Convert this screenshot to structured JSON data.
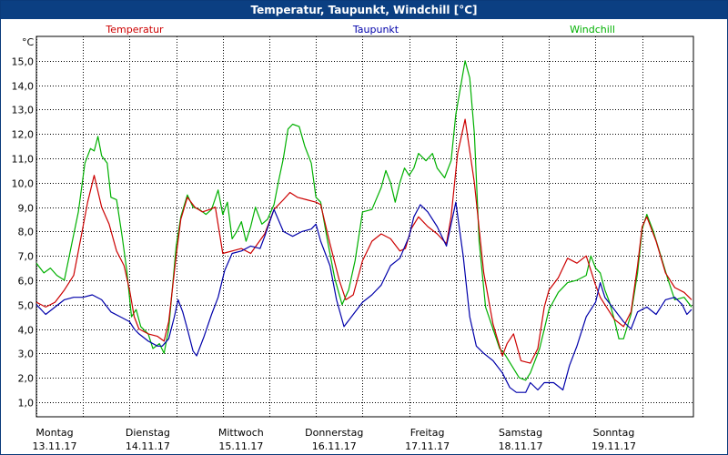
{
  "window": {
    "title": "Temperatur, Taupunkt, Windchill [°C]"
  },
  "chart_data": {
    "type": "line",
    "title": "Temperatur, Taupunkt, Windchill [°C]",
    "ylabel": "°C",
    "ylim": [
      0.4,
      16.0
    ],
    "yticks": [
      1.0,
      2.0,
      3.0,
      4.0,
      5.0,
      6.0,
      7.0,
      8.0,
      9.0,
      10.0,
      11.0,
      12.0,
      13.0,
      14.0,
      15.0
    ],
    "ytick_labels": [
      "1,0",
      "2,0",
      "3,0",
      "4,0",
      "5,0",
      "6,0",
      "7,0",
      "8,0",
      "9,0",
      "10,0",
      "11,0",
      "12,0",
      "13,0",
      "14,0",
      "15,0"
    ],
    "xlim": [
      0,
      7.05
    ],
    "x_unit": "days since 13.11.17 00:00",
    "xticks": [
      {
        "x": 0,
        "day": "Montag",
        "date": "13.11.17"
      },
      {
        "x": 1,
        "day": "Dienstag",
        "date": "14.11.17"
      },
      {
        "x": 2,
        "day": "Mittwoch",
        "date": "15.11.17"
      },
      {
        "x": 3,
        "day": "Donnerstag",
        "date": "16.11.17"
      },
      {
        "x": 4,
        "day": "Freitag",
        "date": "17.11.17"
      },
      {
        "x": 5,
        "day": "Samstag",
        "date": "18.11.17"
      },
      {
        "x": 6,
        "day": "Sonntag",
        "date": "19.11.17"
      }
    ],
    "grid": true,
    "legend": "top",
    "series": [
      {
        "name": "Temperatur",
        "color": "#cc0000",
        "points": [
          [
            0.0,
            5.1
          ],
          [
            0.1,
            4.9
          ],
          [
            0.2,
            5.1
          ],
          [
            0.3,
            5.6
          ],
          [
            0.4,
            6.2
          ],
          [
            0.48,
            7.8
          ],
          [
            0.55,
            9.2
          ],
          [
            0.62,
            10.3
          ],
          [
            0.7,
            9.0
          ],
          [
            0.78,
            8.3
          ],
          [
            0.86,
            7.2
          ],
          [
            0.94,
            6.6
          ],
          [
            1.0,
            5.6
          ],
          [
            1.05,
            4.5
          ],
          [
            1.1,
            4.0
          ],
          [
            1.2,
            3.8
          ],
          [
            1.3,
            3.7
          ],
          [
            1.37,
            3.5
          ],
          [
            1.42,
            4.3
          ],
          [
            1.5,
            7.0
          ],
          [
            1.55,
            8.5
          ],
          [
            1.62,
            9.4
          ],
          [
            1.7,
            9.0
          ],
          [
            1.78,
            8.8
          ],
          [
            1.86,
            8.9
          ],
          [
            1.92,
            9.0
          ],
          [
            2.0,
            7.1
          ],
          [
            2.1,
            7.2
          ],
          [
            2.2,
            7.3
          ],
          [
            2.3,
            7.1
          ],
          [
            2.45,
            7.9
          ],
          [
            2.55,
            8.9
          ],
          [
            2.65,
            9.3
          ],
          [
            2.72,
            9.6
          ],
          [
            2.8,
            9.4
          ],
          [
            2.9,
            9.3
          ],
          [
            3.0,
            9.2
          ],
          [
            3.05,
            9.1
          ],
          [
            3.15,
            7.5
          ],
          [
            3.25,
            6.0
          ],
          [
            3.32,
            5.2
          ],
          [
            3.4,
            5.4
          ],
          [
            3.5,
            6.8
          ],
          [
            3.6,
            7.6
          ],
          [
            3.7,
            7.9
          ],
          [
            3.8,
            7.7
          ],
          [
            3.9,
            7.2
          ],
          [
            3.96,
            7.3
          ],
          [
            4.02,
            8.1
          ],
          [
            4.1,
            8.6
          ],
          [
            4.2,
            8.2
          ],
          [
            4.3,
            7.9
          ],
          [
            4.4,
            7.5
          ],
          [
            4.45,
            8.6
          ],
          [
            4.52,
            11.2
          ],
          [
            4.6,
            12.6
          ],
          [
            4.7,
            10.0
          ],
          [
            4.8,
            6.3
          ],
          [
            4.9,
            4.2
          ],
          [
            5.0,
            2.9
          ],
          [
            5.05,
            3.4
          ],
          [
            5.12,
            3.8
          ],
          [
            5.2,
            2.7
          ],
          [
            5.3,
            2.6
          ],
          [
            5.38,
            3.2
          ],
          [
            5.45,
            4.9
          ],
          [
            5.5,
            5.6
          ],
          [
            5.6,
            6.1
          ],
          [
            5.7,
            6.9
          ],
          [
            5.8,
            6.7
          ],
          [
            5.9,
            7.0
          ],
          [
            6.0,
            5.8
          ],
          [
            6.05,
            5.3
          ],
          [
            6.1,
            5.0
          ],
          [
            6.2,
            4.4
          ],
          [
            6.3,
            4.1
          ],
          [
            6.38,
            4.7
          ],
          [
            6.45,
            6.6
          ],
          [
            6.5,
            8.2
          ],
          [
            6.55,
            8.6
          ],
          [
            6.65,
            7.6
          ],
          [
            6.75,
            6.3
          ],
          [
            6.85,
            5.7
          ],
          [
            6.95,
            5.5
          ],
          [
            7.03,
            5.2
          ]
        ]
      },
      {
        "name": "Taupunkt",
        "color": "#0000aa",
        "points": [
          [
            0.0,
            5.0
          ],
          [
            0.1,
            4.6
          ],
          [
            0.2,
            4.9
          ],
          [
            0.3,
            5.2
          ],
          [
            0.4,
            5.3
          ],
          [
            0.5,
            5.3
          ],
          [
            0.6,
            5.4
          ],
          [
            0.7,
            5.2
          ],
          [
            0.8,
            4.7
          ],
          [
            0.9,
            4.5
          ],
          [
            1.0,
            4.3
          ],
          [
            1.05,
            4.0
          ],
          [
            1.1,
            3.8
          ],
          [
            1.2,
            3.5
          ],
          [
            1.3,
            3.3
          ],
          [
            1.35,
            3.3
          ],
          [
            1.42,
            3.6
          ],
          [
            1.48,
            4.5
          ],
          [
            1.52,
            5.2
          ],
          [
            1.57,
            4.7
          ],
          [
            1.62,
            4.0
          ],
          [
            1.68,
            3.1
          ],
          [
            1.72,
            2.9
          ],
          [
            1.8,
            3.7
          ],
          [
            1.88,
            4.6
          ],
          [
            1.95,
            5.3
          ],
          [
            2.02,
            6.4
          ],
          [
            2.1,
            7.1
          ],
          [
            2.2,
            7.2
          ],
          [
            2.3,
            7.4
          ],
          [
            2.4,
            7.3
          ],
          [
            2.45,
            7.8
          ],
          [
            2.55,
            8.9
          ],
          [
            2.65,
            8.0
          ],
          [
            2.75,
            7.8
          ],
          [
            2.85,
            8.0
          ],
          [
            2.95,
            8.1
          ],
          [
            3.0,
            8.3
          ],
          [
            3.05,
            7.6
          ],
          [
            3.15,
            6.6
          ],
          [
            3.22,
            5.2
          ],
          [
            3.3,
            4.1
          ],
          [
            3.4,
            4.6
          ],
          [
            3.5,
            5.1
          ],
          [
            3.6,
            5.4
          ],
          [
            3.7,
            5.8
          ],
          [
            3.8,
            6.6
          ],
          [
            3.9,
            6.9
          ],
          [
            4.0,
            7.8
          ],
          [
            4.05,
            8.6
          ],
          [
            4.12,
            9.1
          ],
          [
            4.2,
            8.8
          ],
          [
            4.3,
            8.2
          ],
          [
            4.4,
            7.4
          ],
          [
            4.5,
            9.2
          ],
          [
            4.58,
            7.0
          ],
          [
            4.65,
            4.5
          ],
          [
            4.72,
            3.3
          ],
          [
            4.8,
            3.0
          ],
          [
            4.9,
            2.7
          ],
          [
            5.0,
            2.2
          ],
          [
            5.08,
            1.6
          ],
          [
            5.15,
            1.4
          ],
          [
            5.25,
            1.4
          ],
          [
            5.3,
            1.8
          ],
          [
            5.38,
            1.5
          ],
          [
            5.45,
            1.8
          ],
          [
            5.55,
            1.8
          ],
          [
            5.65,
            1.5
          ],
          [
            5.72,
            2.5
          ],
          [
            5.8,
            3.3
          ],
          [
            5.9,
            4.5
          ],
          [
            6.0,
            5.1
          ],
          [
            6.05,
            5.9
          ],
          [
            6.1,
            5.3
          ],
          [
            6.2,
            4.8
          ],
          [
            6.3,
            4.3
          ],
          [
            6.38,
            4.0
          ],
          [
            6.45,
            4.7
          ],
          [
            6.55,
            4.9
          ],
          [
            6.65,
            4.6
          ],
          [
            6.75,
            5.2
          ],
          [
            6.85,
            5.3
          ],
          [
            6.93,
            5.0
          ],
          [
            6.98,
            4.6
          ],
          [
            7.03,
            4.8
          ]
        ]
      },
      {
        "name": "Windchill",
        "color": "#00b000",
        "points": [
          [
            0.0,
            6.7
          ],
          [
            0.08,
            6.3
          ],
          [
            0.15,
            6.5
          ],
          [
            0.22,
            6.2
          ],
          [
            0.3,
            6.0
          ],
          [
            0.38,
            7.5
          ],
          [
            0.45,
            8.8
          ],
          [
            0.52,
            10.8
          ],
          [
            0.58,
            11.4
          ],
          [
            0.62,
            11.3
          ],
          [
            0.66,
            11.9
          ],
          [
            0.7,
            11.1
          ],
          [
            0.76,
            10.8
          ],
          [
            0.8,
            9.4
          ],
          [
            0.86,
            9.3
          ],
          [
            0.92,
            7.8
          ],
          [
            0.97,
            6.4
          ],
          [
            1.02,
            4.5
          ],
          [
            1.07,
            4.8
          ],
          [
            1.12,
            4.1
          ],
          [
            1.2,
            3.8
          ],
          [
            1.25,
            3.2
          ],
          [
            1.32,
            3.4
          ],
          [
            1.37,
            3.0
          ],
          [
            1.42,
            4.0
          ],
          [
            1.5,
            7.4
          ],
          [
            1.55,
            8.6
          ],
          [
            1.62,
            9.5
          ],
          [
            1.68,
            9.0
          ],
          [
            1.75,
            8.9
          ],
          [
            1.82,
            8.7
          ],
          [
            1.88,
            8.9
          ],
          [
            1.95,
            9.7
          ],
          [
            2.0,
            8.7
          ],
          [
            2.05,
            9.2
          ],
          [
            2.1,
            7.7
          ],
          [
            2.15,
            8.0
          ],
          [
            2.2,
            8.4
          ],
          [
            2.25,
            7.6
          ],
          [
            2.3,
            8.2
          ],
          [
            2.35,
            9.0
          ],
          [
            2.42,
            8.3
          ],
          [
            2.48,
            8.5
          ],
          [
            2.55,
            9.1
          ],
          [
            2.6,
            10.1
          ],
          [
            2.65,
            11.0
          ],
          [
            2.7,
            12.2
          ],
          [
            2.75,
            12.4
          ],
          [
            2.82,
            12.3
          ],
          [
            2.88,
            11.5
          ],
          [
            2.95,
            10.8
          ],
          [
            3.0,
            9.4
          ],
          [
            3.05,
            9.2
          ],
          [
            3.12,
            7.7
          ],
          [
            3.2,
            6.1
          ],
          [
            3.28,
            5.0
          ],
          [
            3.35,
            5.6
          ],
          [
            3.42,
            6.8
          ],
          [
            3.5,
            8.8
          ],
          [
            3.6,
            8.9
          ],
          [
            3.7,
            9.8
          ],
          [
            3.75,
            10.5
          ],
          [
            3.8,
            10.0
          ],
          [
            3.85,
            9.2
          ],
          [
            3.9,
            10.0
          ],
          [
            3.95,
            10.6
          ],
          [
            4.0,
            10.3
          ],
          [
            4.05,
            10.6
          ],
          [
            4.1,
            11.2
          ],
          [
            4.18,
            10.9
          ],
          [
            4.25,
            11.2
          ],
          [
            4.3,
            10.6
          ],
          [
            4.38,
            10.2
          ],
          [
            4.45,
            10.9
          ],
          [
            4.5,
            12.8
          ],
          [
            4.55,
            13.9
          ],
          [
            4.6,
            15.0
          ],
          [
            4.65,
            14.3
          ],
          [
            4.7,
            12.0
          ],
          [
            4.75,
            7.6
          ],
          [
            4.82,
            4.9
          ],
          [
            4.9,
            4.0
          ],
          [
            4.97,
            3.2
          ],
          [
            5.02,
            3.0
          ],
          [
            5.1,
            2.5
          ],
          [
            5.18,
            2.0
          ],
          [
            5.25,
            1.9
          ],
          [
            5.3,
            2.2
          ],
          [
            5.4,
            3.2
          ],
          [
            5.5,
            4.8
          ],
          [
            5.6,
            5.5
          ],
          [
            5.7,
            5.9
          ],
          [
            5.8,
            6.0
          ],
          [
            5.9,
            6.2
          ],
          [
            5.95,
            7.0
          ],
          [
            6.0,
            6.5
          ],
          [
            6.05,
            6.3
          ],
          [
            6.1,
            5.6
          ],
          [
            6.15,
            5.1
          ],
          [
            6.2,
            4.4
          ],
          [
            6.25,
            3.6
          ],
          [
            6.3,
            3.6
          ],
          [
            6.38,
            4.6
          ],
          [
            6.45,
            6.3
          ],
          [
            6.5,
            8.1
          ],
          [
            6.55,
            8.7
          ],
          [
            6.62,
            8.0
          ],
          [
            6.7,
            7.0
          ],
          [
            6.78,
            6.0
          ],
          [
            6.85,
            5.2
          ],
          [
            6.95,
            5.3
          ],
          [
            7.03,
            4.9
          ]
        ]
      }
    ]
  }
}
